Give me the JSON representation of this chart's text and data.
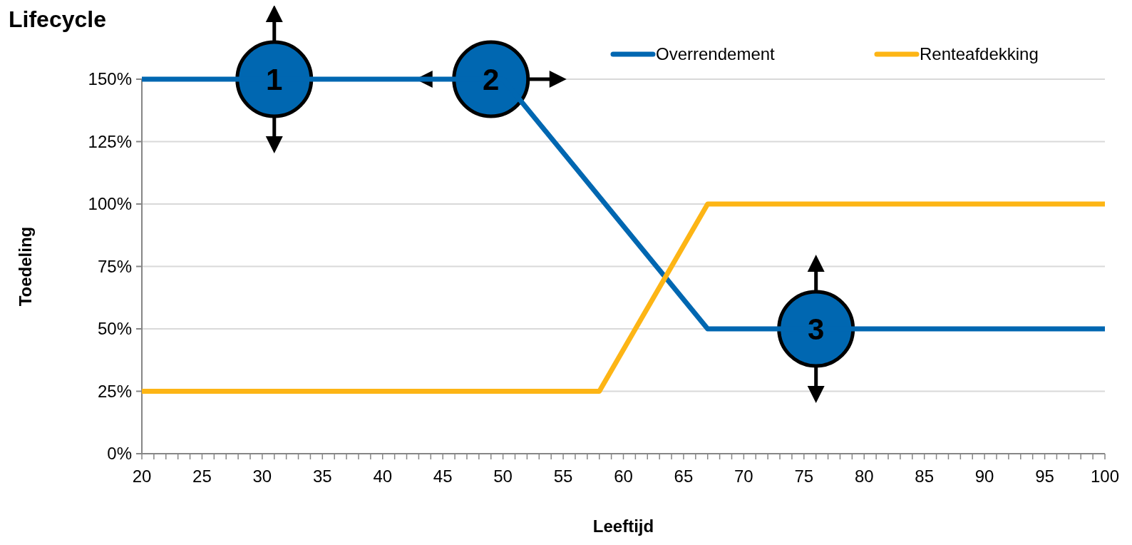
{
  "chart_data": {
    "type": "line",
    "title": "Lifecycle",
    "xlabel": "Leeftijd",
    "ylabel": "Toedeling",
    "series": [
      {
        "name": "Overrendement",
        "color": "#0067b1",
        "x": [
          20,
          50,
          67,
          100
        ],
        "values": [
          150,
          150,
          50,
          50
        ]
      },
      {
        "name": "Renteafdekking",
        "color": "#fdb515",
        "x": [
          20,
          58,
          67,
          100
        ],
        "values": [
          25,
          25,
          100,
          100
        ]
      }
    ],
    "xlim": [
      20,
      100
    ],
    "xticks": [
      20,
      {
        "value": 21,
        "label": null
      },
      {
        "value": 22,
        "label": null
      },
      {
        "value": 23,
        "label": null
      },
      {
        "value": 24,
        "label": null
      },
      25,
      {
        "value": 26,
        "label": null
      },
      {
        "value": 27,
        "label": null
      },
      {
        "value": 28,
        "label": null
      },
      {
        "value": 29,
        "label": null
      },
      30,
      {
        "value": 31,
        "label": null
      },
      {
        "value": 32,
        "label": null
      },
      {
        "value": 33,
        "label": null
      },
      {
        "value": 34,
        "label": null
      },
      35,
      {
        "value": 36,
        "label": null
      },
      {
        "value": 37,
        "label": null
      },
      {
        "value": 38,
        "label": null
      },
      {
        "value": 39,
        "label": null
      },
      40,
      {
        "value": 41,
        "label": null
      },
      {
        "value": 42,
        "label": null
      },
      {
        "value": 43,
        "label": null
      },
      {
        "value": 44,
        "label": null
      },
      45,
      {
        "value": 46,
        "label": null
      },
      {
        "value": 47,
        "label": null
      },
      {
        "value": 48,
        "label": null
      },
      {
        "value": 49,
        "label": null
      },
      50,
      {
        "value": 51,
        "label": null
      },
      {
        "value": 52,
        "label": null
      },
      {
        "value": 53,
        "label": null
      },
      {
        "value": 54,
        "label": null
      },
      55,
      {
        "value": 56,
        "label": null
      },
      {
        "value": 57,
        "label": null
      },
      {
        "value": 58,
        "label": null
      },
      {
        "value": 59,
        "label": null
      },
      60,
      {
        "value": 61,
        "label": null
      },
      {
        "value": 62,
        "label": null
      },
      {
        "value": 63,
        "label": null
      },
      {
        "value": 64,
        "label": null
      },
      65,
      {
        "value": 66,
        "label": null
      },
      {
        "value": 67,
        "label": null
      },
      {
        "value": 68,
        "label": null
      },
      {
        "value": 69,
        "label": null
      },
      70,
      {
        "value": 71,
        "label": null
      },
      {
        "value": 72,
        "label": null
      },
      {
        "value": 73,
        "label": null
      },
      {
        "value": 74,
        "label": null
      },
      75,
      {
        "value": 76,
        "label": null
      },
      {
        "value": 77,
        "label": null
      },
      {
        "value": 78,
        "label": null
      },
      {
        "value": 79,
        "label": null
      },
      80,
      {
        "value": 81,
        "label": null
      },
      {
        "value": 82,
        "label": null
      },
      {
        "value": 83,
        "label": null
      },
      {
        "value": 84,
        "label": null
      },
      85,
      {
        "value": 86,
        "label": null
      },
      {
        "value": 87,
        "label": null
      },
      {
        "value": 88,
        "label": null
      },
      {
        "value": 89,
        "label": null
      },
      90,
      {
        "value": 91,
        "label": null
      },
      {
        "value": 92,
        "label": null
      },
      {
        "value": 93,
        "label": null
      },
      {
        "value": 94,
        "label": null
      },
      95,
      {
        "value": 96,
        "label": null
      },
      {
        "value": 97,
        "label": null
      },
      {
        "value": 98,
        "label": null
      },
      {
        "value": 99,
        "label": null
      },
      100
    ],
    "ylim": [
      0,
      150
    ],
    "yticks": [
      {
        "value": 0,
        "label": "0%"
      },
      {
        "value": 25,
        "label": "25%"
      },
      {
        "value": 50,
        "label": "50%"
      },
      {
        "value": 75,
        "label": "75%"
      },
      {
        "value": 100,
        "label": "100%"
      },
      {
        "value": 125,
        "label": "125%"
      },
      {
        "value": 150,
        "label": "150%"
      }
    ],
    "grid": "y",
    "legend": "top right",
    "annotations": [
      {
        "text": "1",
        "x": 31,
        "y": 150
      },
      {
        "text": "2",
        "x": 49,
        "y": 150
      },
      {
        "text": "3",
        "x": 76,
        "y": 50
      }
    ]
  }
}
